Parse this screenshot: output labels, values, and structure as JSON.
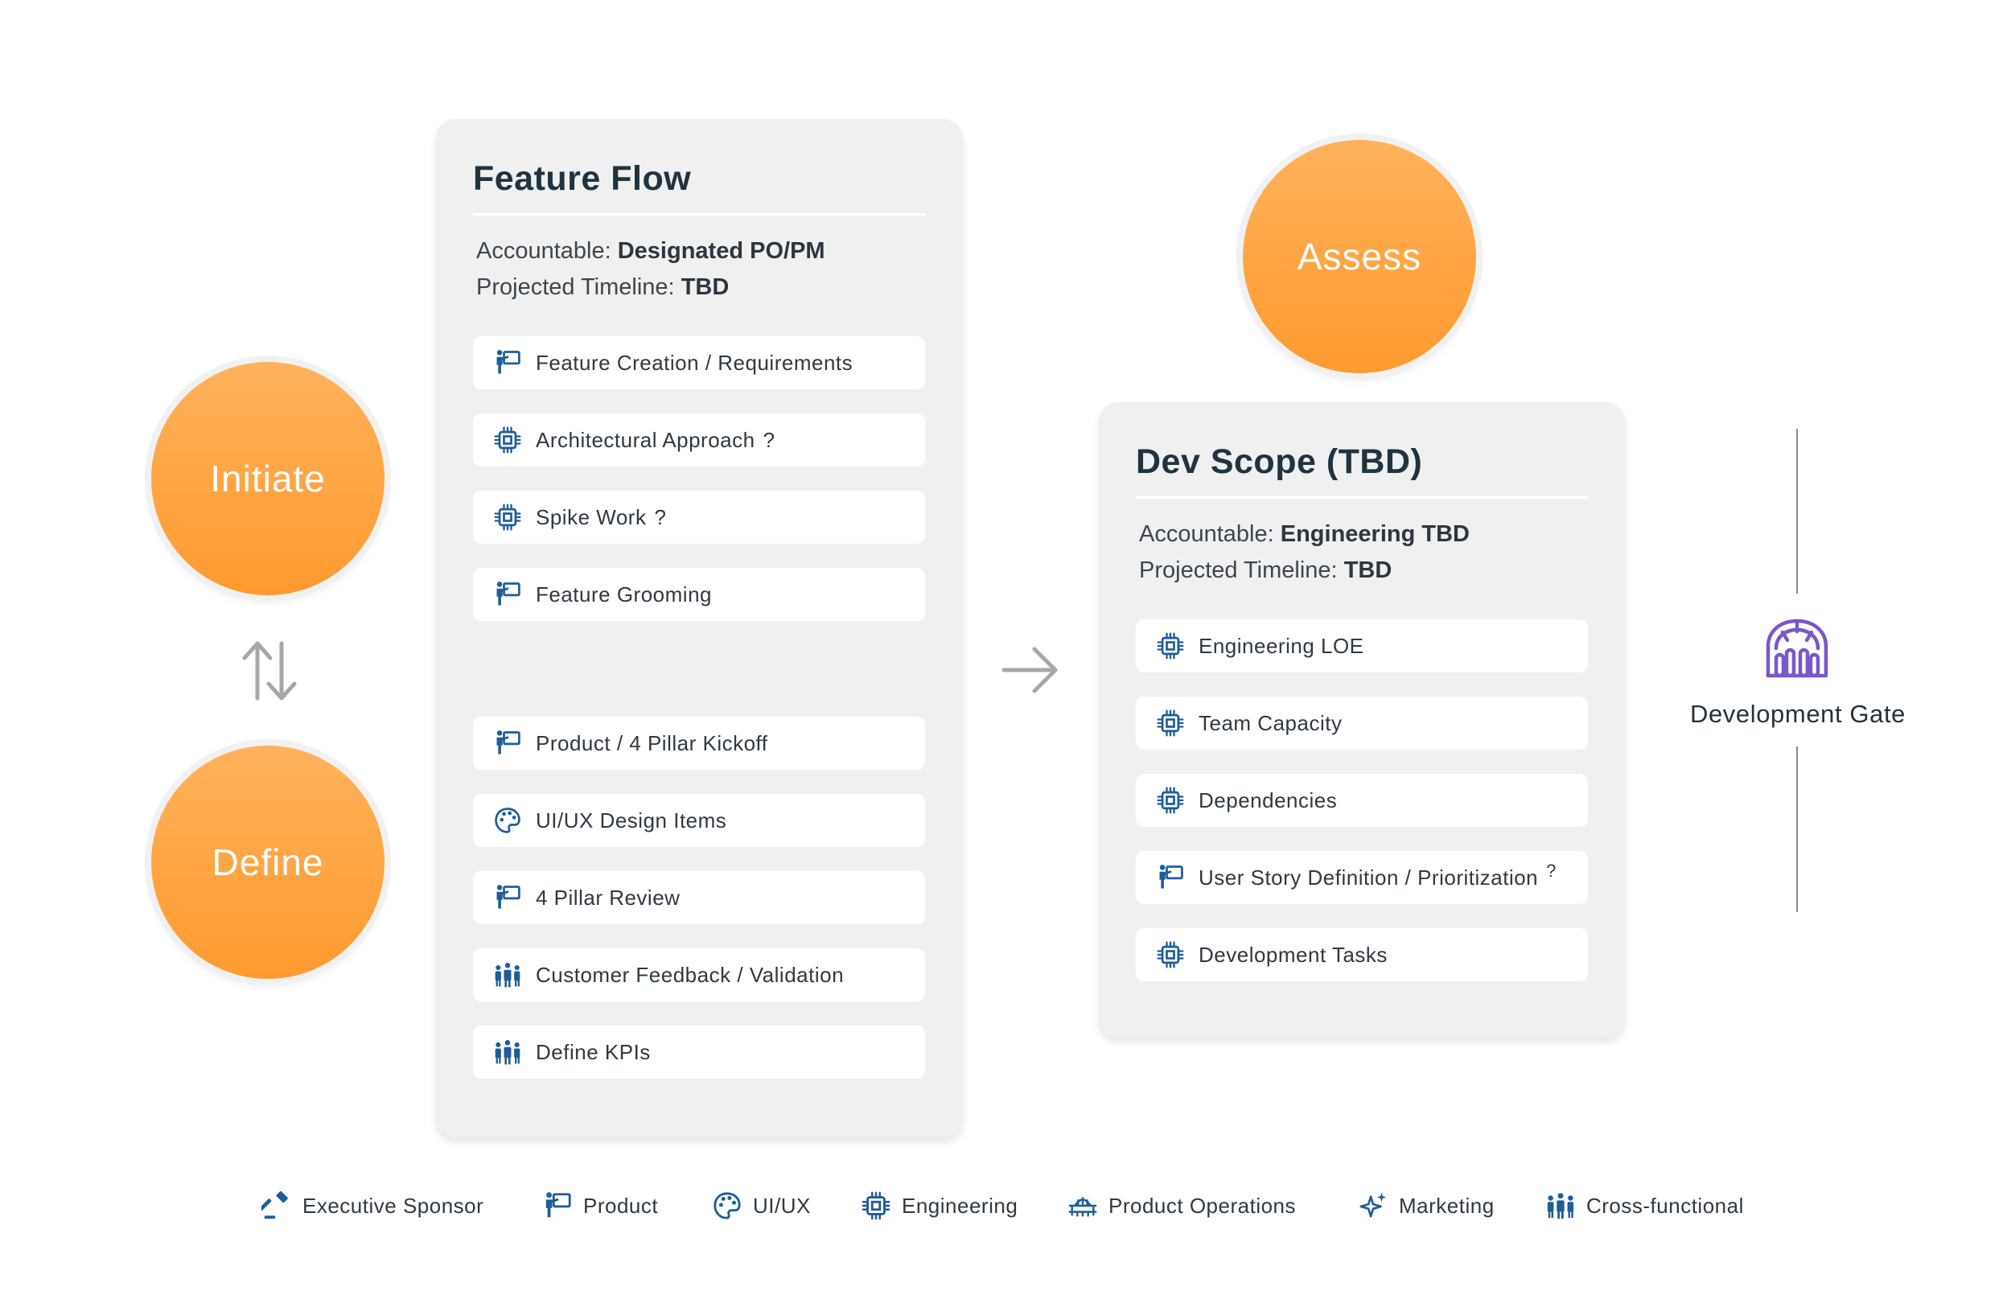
{
  "phases": {
    "initiate": "Initiate",
    "define": "Define",
    "assess": "Assess"
  },
  "feature_flow": {
    "title": "Feature Flow",
    "accountable_label": "Accountable:",
    "accountable_value": "Designated PO/PM",
    "timeline_label": "Projected Timeline:",
    "timeline_value": "TBD",
    "items": [
      {
        "icon": "product-icon",
        "label": "Feature Creation / Requirements",
        "q": ""
      },
      {
        "icon": "engineering-icon",
        "label": "Architectural Approach",
        "q": "?"
      },
      {
        "icon": "engineering-icon",
        "label": "Spike Work",
        "q": "?"
      },
      {
        "icon": "product-icon",
        "label": "Feature Grooming",
        "q": ""
      },
      {
        "icon": "product-icon",
        "label": "Product / 4 Pillar Kickoff",
        "q": ""
      },
      {
        "icon": "uiux-icon",
        "label": "UI/UX Design Items",
        "q": ""
      },
      {
        "icon": "product-icon",
        "label": "4 Pillar Review",
        "q": ""
      },
      {
        "icon": "cross-functional-icon",
        "label": "Customer Feedback / Validation",
        "q": ""
      },
      {
        "icon": "cross-functional-icon",
        "label": "Define KPIs",
        "q": ""
      }
    ]
  },
  "dev_scope": {
    "title": "Dev Scope (TBD)",
    "accountable_label": "Accountable:",
    "accountable_value": "Engineering TBD",
    "timeline_label": "Projected Timeline:",
    "timeline_value": "TBD",
    "items": [
      {
        "icon": "engineering-icon",
        "label": "Engineering LOE",
        "q": ""
      },
      {
        "icon": "engineering-icon",
        "label": "Team Capacity",
        "q": ""
      },
      {
        "icon": "engineering-icon",
        "label": "Dependencies",
        "q": ""
      },
      {
        "icon": "product-icon",
        "label": "User Story Definition / Prioritization",
        "q": "?"
      },
      {
        "icon": "engineering-icon",
        "label": "Development Tasks",
        "q": ""
      }
    ]
  },
  "gate": {
    "label": "Development Gate",
    "icon": "gate-icon"
  },
  "legend": [
    {
      "icon": "executive-sponsor-icon",
      "label": "Executive Sponsor"
    },
    {
      "icon": "product-icon",
      "label": "Product"
    },
    {
      "icon": "uiux-icon",
      "label": "UI/UX"
    },
    {
      "icon": "engineering-icon",
      "label": "Engineering"
    },
    {
      "icon": "product-operations-icon",
      "label": "Product Operations"
    },
    {
      "icon": "marketing-icon",
      "label": "Marketing"
    },
    {
      "icon": "cross-functional-icon",
      "label": "Cross-functional"
    }
  ],
  "colors": {
    "phase": "#ff9a2e",
    "card": "#f0f0f0",
    "icon_blue": "#1f5d9a",
    "gate_purple": "#7b57c9",
    "connector": "#a6a6a6"
  }
}
